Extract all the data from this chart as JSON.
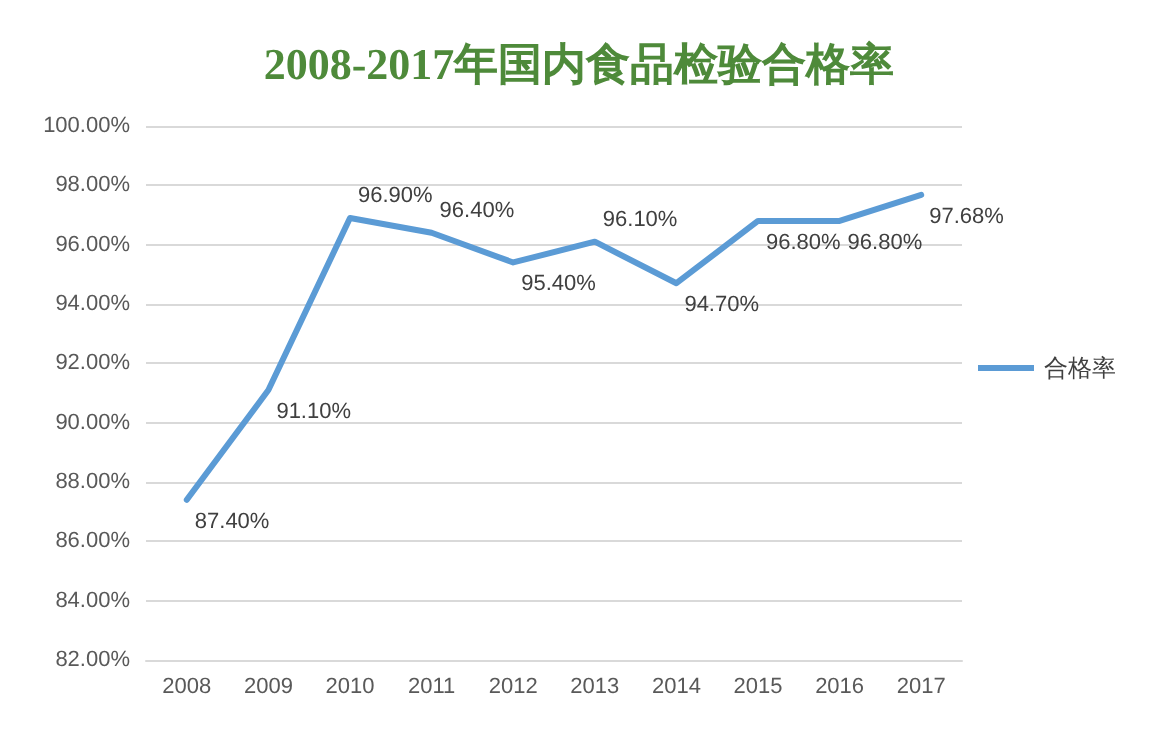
{
  "chart_data": {
    "type": "line",
    "title": "2008-2017年国内食品检验合格率",
    "categories": [
      "2008",
      "2009",
      "2010",
      "2011",
      "2012",
      "2013",
      "2014",
      "2015",
      "2016",
      "2017"
    ],
    "series": [
      {
        "name": "合格率",
        "color": "#5b9bd5",
        "values": [
          87.4,
          91.1,
          96.9,
          96.4,
          95.4,
          96.1,
          94.7,
          96.8,
          96.8,
          97.68
        ],
        "value_labels": [
          "87.40%",
          "91.10%",
          "96.90%",
          "96.40%",
          "95.40%",
          "96.10%",
          "94.70%",
          "96.80%",
          "96.80%",
          "97.68%"
        ]
      }
    ],
    "ylim": [
      82,
      100
    ],
    "yticks": [
      {
        "value": 82,
        "label": "82.00%"
      },
      {
        "value": 84,
        "label": "84.00%"
      },
      {
        "value": 86,
        "label": "86.00%"
      },
      {
        "value": 88,
        "label": "88.00%"
      },
      {
        "value": 90,
        "label": "90.00%"
      },
      {
        "value": 92,
        "label": "92.00%"
      },
      {
        "value": 94,
        "label": "94.00%"
      },
      {
        "value": 96,
        "label": "96.00%"
      },
      {
        "value": 98,
        "label": "98.00%"
      },
      {
        "value": 100,
        "label": "100.00%"
      }
    ],
    "grid": "y",
    "legend": "right",
    "marker": "none",
    "line_style": "solid"
  }
}
